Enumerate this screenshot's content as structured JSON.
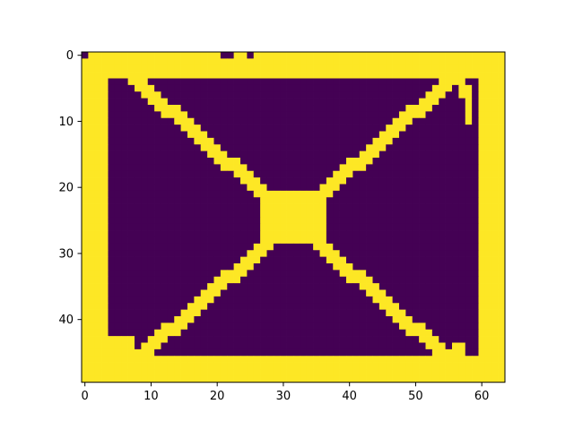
{
  "chart_data": {
    "type": "heatmap",
    "title": "",
    "xlabel": "",
    "ylabel": "",
    "n_cols": 64,
    "n_rows": 50,
    "xlim": [
      -0.5,
      63.5
    ],
    "ylim": [
      49.5,
      -0.5
    ],
    "x_ticks": [
      0,
      10,
      20,
      30,
      40,
      50,
      60
    ],
    "y_ticks": [
      0,
      10,
      20,
      30,
      40
    ],
    "x_tick_labels": [
      "0",
      "10",
      "20",
      "30",
      "40",
      "50",
      "60"
    ],
    "y_tick_labels": [
      "0",
      "10",
      "20",
      "30",
      "40"
    ],
    "grid": false,
    "colormap": "viridis",
    "values_description": "binary mask: 1 = yellow, 0 = purple",
    "colors": {
      "low": "#440154",
      "high": "#fde725"
    }
  }
}
